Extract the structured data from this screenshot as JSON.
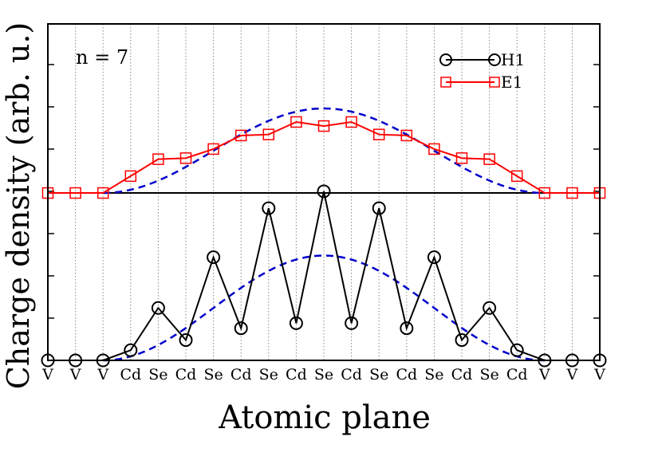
{
  "chart_data": {
    "type": "line",
    "ylabel": "Charge density (arb. u.)",
    "xlabel": "Atomic plane",
    "annotation": "n = 7",
    "categories": [
      "V",
      "V",
      "V",
      "Cd",
      "Se",
      "Cd",
      "Se",
      "Cd",
      "Se",
      "Cd",
      "Se",
      "Cd",
      "Se",
      "Cd",
      "Se",
      "Cd",
      "Se",
      "Cd",
      "V",
      "V",
      "V"
    ],
    "legend_position": "top-right",
    "grid": "vertical dotted lines at each atomic plane",
    "y_axis_tick_labels_shown": false,
    "series": [
      {
        "name": "H1",
        "marker": "circle",
        "color": "#000000",
        "values": [
          0,
          0,
          0,
          0.3,
          1.55,
          0.6,
          3.05,
          0.95,
          4.5,
          1.1,
          5.0,
          1.1,
          4.5,
          0.95,
          3.05,
          0.6,
          1.55,
          0.3,
          0,
          0,
          0
        ]
      },
      {
        "name": "E1",
        "marker": "square",
        "color": "#ff0000",
        "values": [
          4.95,
          4.95,
          4.95,
          5.45,
          5.95,
          5.98,
          6.25,
          6.65,
          6.68,
          7.05,
          6.93,
          7.05,
          6.68,
          6.65,
          6.25,
          5.98,
          5.95,
          5.45,
          4.95,
          4.95,
          4.95
        ]
      },
      {
        "name": "",
        "style": "dashed",
        "color": "#0000cc",
        "baseline": 0,
        "peak": 3.1,
        "range": [
          2,
          18
        ],
        "description_shape": "cos-squared envelope",
        "values": [
          0,
          0,
          0,
          0.09,
          0.35,
          0.73,
          1.19,
          1.68,
          2.14,
          2.53,
          2.79,
          3.1,
          2.79,
          2.53,
          2.14,
          1.68,
          1.19,
          0.73,
          0.35,
          0.09,
          0
        ]
      },
      {
        "name": "",
        "style": "dashed",
        "color": "#0000cc",
        "baseline": 4.95,
        "peak": 2.5,
        "range": [
          2,
          18
        ],
        "description_shape": "cos-squared envelope",
        "values": [
          4.95,
          4.95,
          4.95,
          5.02,
          5.24,
          5.54,
          5.91,
          6.31,
          6.69,
          7.0,
          7.21,
          7.45,
          7.21,
          7.0,
          6.69,
          6.31,
          5.91,
          5.54,
          5.24,
          5.02,
          4.95
        ]
      }
    ],
    "ylim": [
      0,
      9.95
    ],
    "xlim": [
      0,
      20
    ]
  }
}
